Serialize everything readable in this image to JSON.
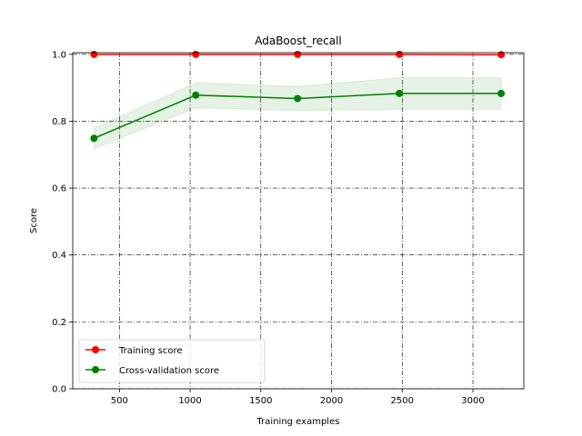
{
  "chart_data": {
    "type": "line",
    "title": "AdaBoost_recall",
    "xlabel": "Training examples",
    "ylabel": "Score",
    "xlim": [
      170,
      3360
    ],
    "ylim": [
      0.0,
      1.005
    ],
    "xticks": [
      500,
      1000,
      1500,
      2000,
      2500,
      3000
    ],
    "yticks": [
      0.0,
      0.2,
      0.4,
      0.6,
      0.8,
      1.0
    ],
    "ytick_labels": [
      "0.0",
      "0.2",
      "0.4",
      "0.6",
      "0.8",
      "1.0"
    ],
    "grid": true,
    "legend_position": "lower-left",
    "x": [
      320,
      1040,
      1760,
      2480,
      3200
    ],
    "series": [
      {
        "name": "Training score",
        "color": "#ff0000",
        "values": [
          1.0,
          1.0,
          1.0,
          1.0,
          0.999
        ],
        "band_lower": [
          1.0,
          1.0,
          1.0,
          1.0,
          0.998
        ],
        "band_upper": [
          1.0,
          1.0,
          1.0,
          1.0,
          1.0
        ]
      },
      {
        "name": "Cross-validation score",
        "color": "#008000",
        "values": [
          0.749,
          0.878,
          0.868,
          0.883,
          0.883
        ],
        "band_lower": [
          0.717,
          0.84,
          0.832,
          0.836,
          0.836
        ],
        "band_upper": [
          0.78,
          0.915,
          0.904,
          0.93,
          0.93
        ]
      }
    ]
  }
}
